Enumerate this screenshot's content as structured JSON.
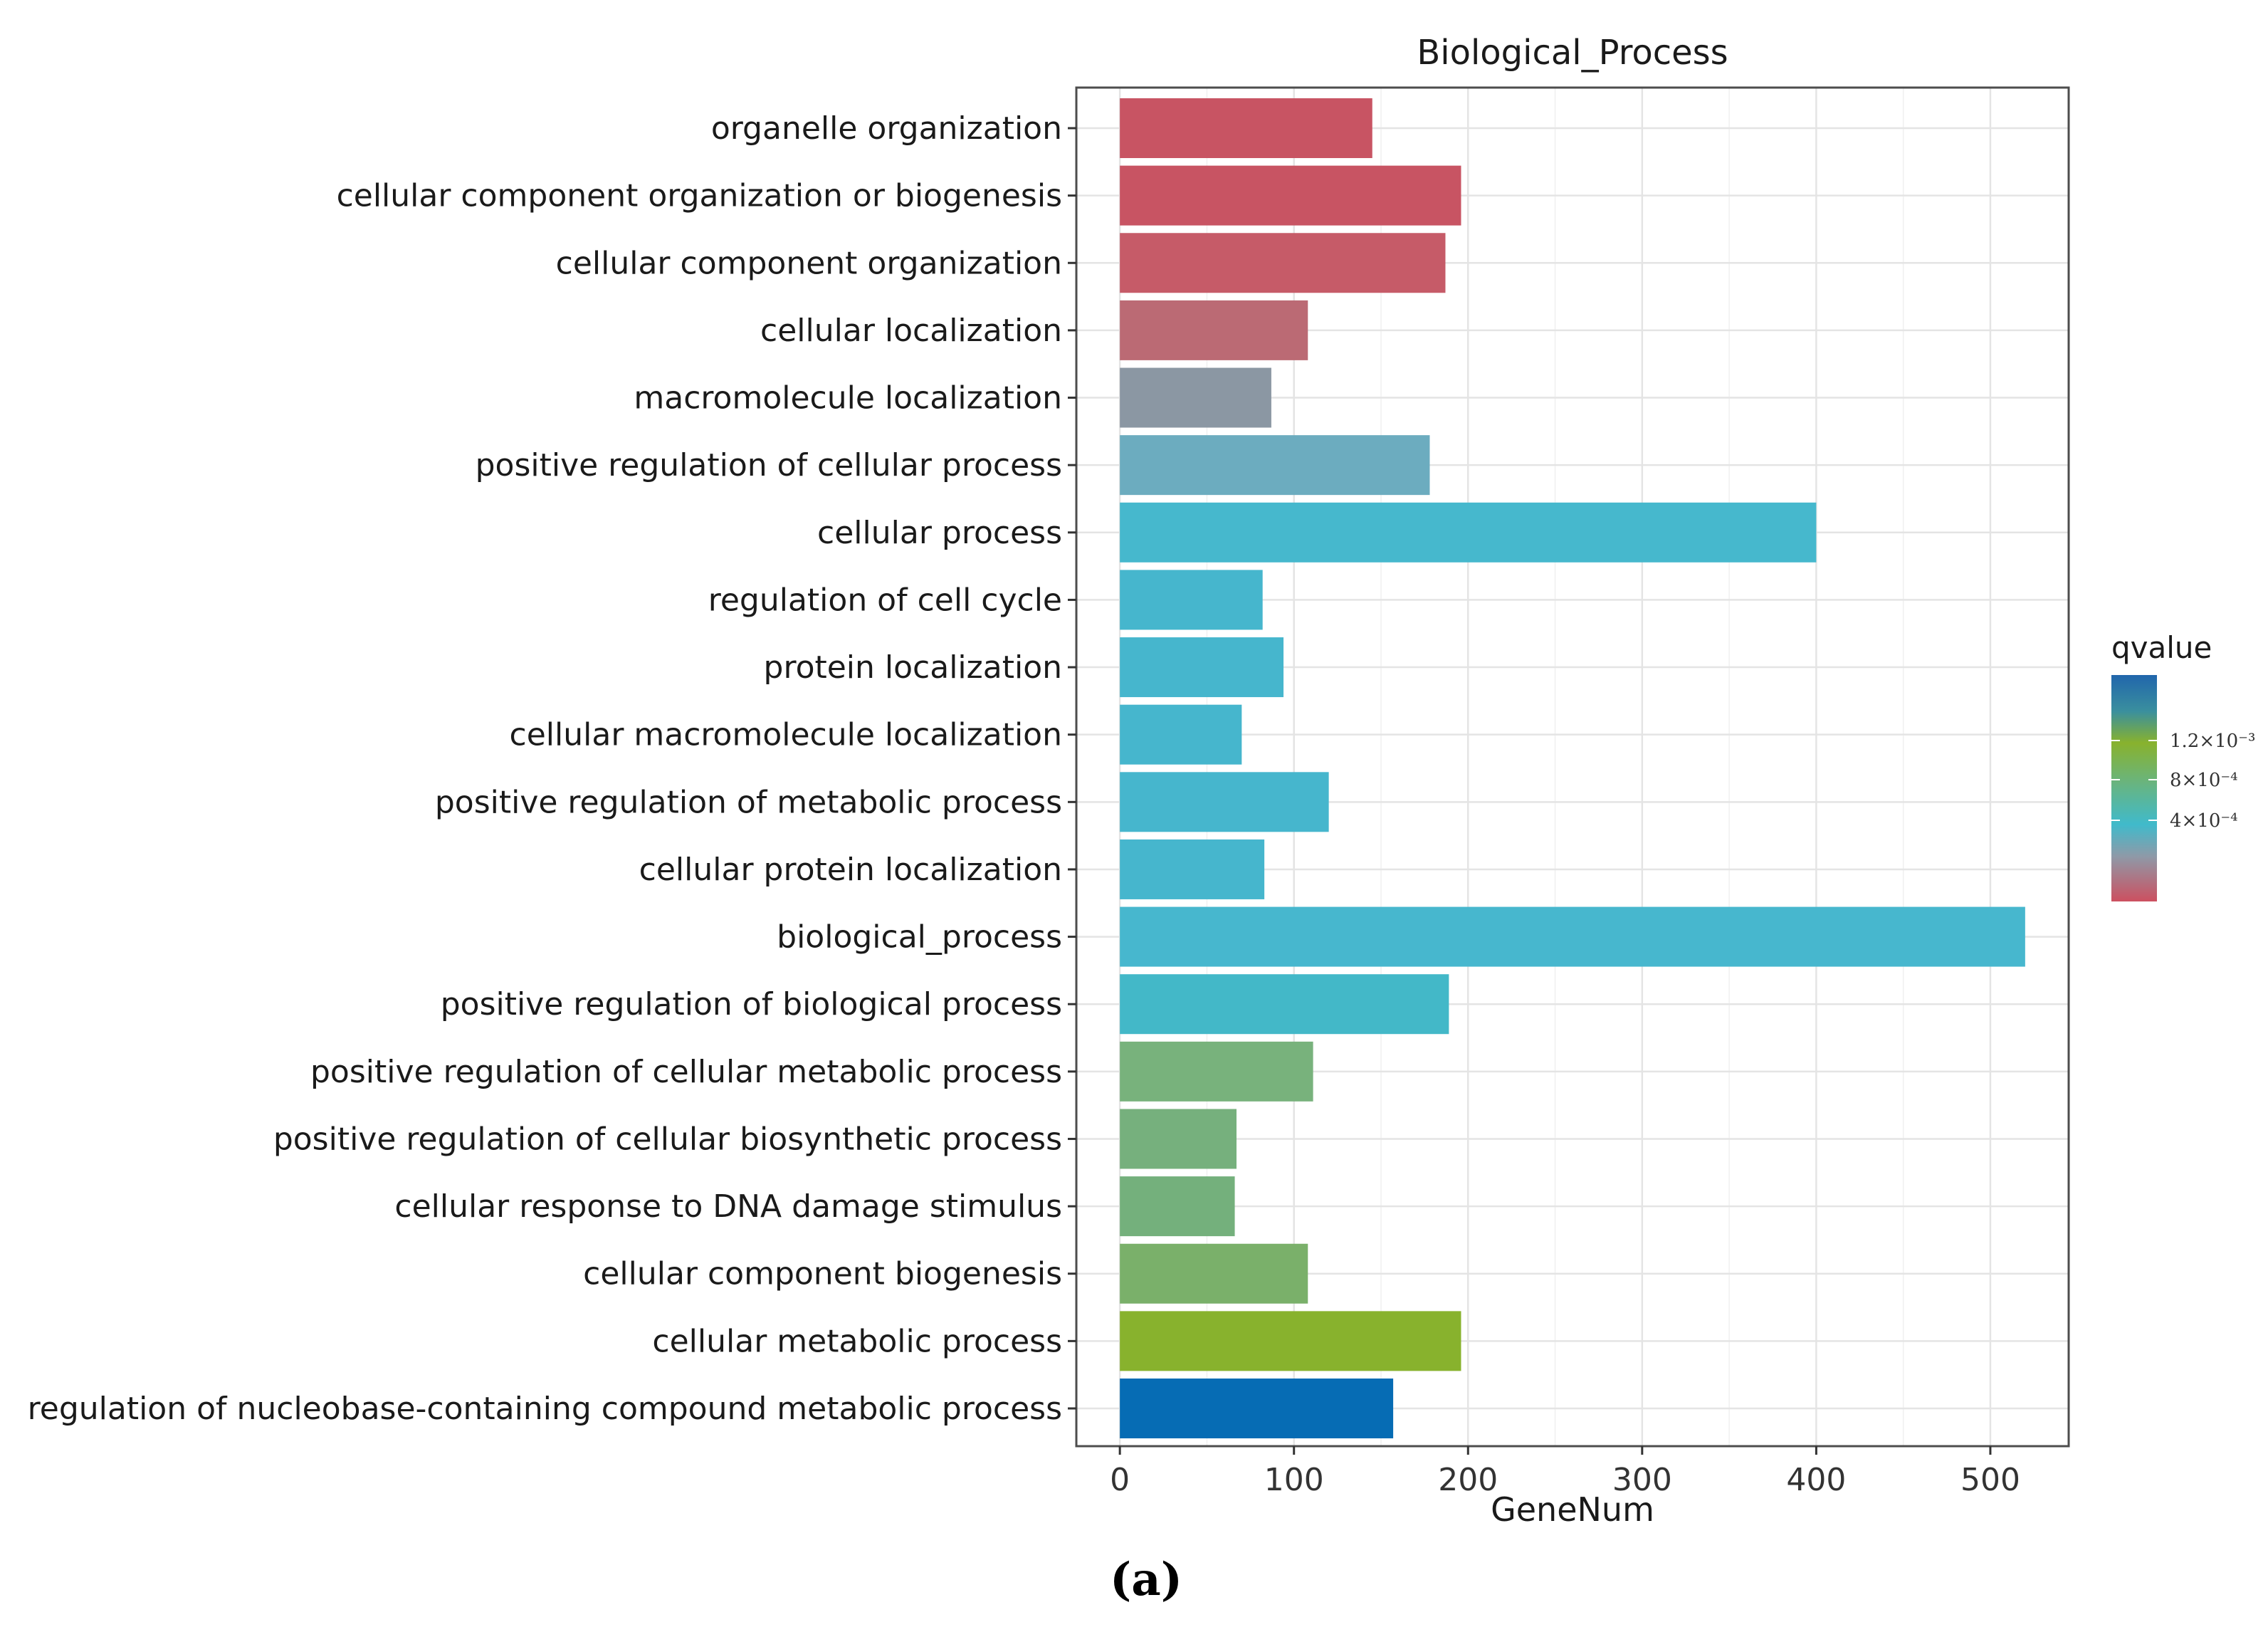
{
  "chart_data": {
    "type": "bar",
    "orientation": "horizontal",
    "title": "Biological_Process",
    "xlabel": "GeneNum",
    "ylabel": "",
    "xlim": [
      -25,
      545
    ],
    "xticks": [
      0,
      100,
      200,
      300,
      400,
      500
    ],
    "grid": true,
    "categories": [
      "organelle organization",
      "cellular component organization or biogenesis",
      "cellular component organization",
      "cellular localization",
      "macromolecule localization",
      "positive regulation of cellular process",
      "cellular process",
      "regulation of cell cycle",
      "protein localization",
      "cellular macromolecule localization",
      "positive regulation of metabolic process",
      "cellular protein localization",
      "biological_process",
      "positive regulation of biological process",
      "positive regulation of cellular metabolic process",
      "positive regulation of cellular biosynthetic process",
      "cellular response to DNA damage stimulus",
      "cellular component biogenesis",
      "cellular metabolic process",
      "regulation of nucleobase-containing compound metabolic process"
    ],
    "values": [
      145,
      196,
      187,
      108,
      87,
      178,
      400,
      82,
      94,
      70,
      120,
      83,
      520,
      189,
      111,
      67,
      66,
      108,
      196,
      157
    ],
    "bar_colors": [
      "#c85463",
      "#c85463",
      "#c65b68",
      "#bb6a74",
      "#8b97a3",
      "#6cacbf",
      "#46b8cd",
      "#46b6cd",
      "#46b6cd",
      "#46b6cd",
      "#46b6cd",
      "#46b6cd",
      "#47b7ce",
      "#43b8c8",
      "#78b27c",
      "#76b07d",
      "#74b07c",
      "#7ab06a",
      "#88b22d",
      "#066cb4"
    ],
    "legend": {
      "title": "qvalue",
      "placement": "right",
      "gradient_colors": [
        "#2166ac",
        "#3a8f9e",
        "#88b22d",
        "#6ab47c",
        "#40bacb",
        "#8e9aa8",
        "#cc5060"
      ],
      "tick_labels": [
        "1.2×10⁻³",
        "8×10⁻⁴",
        "4×10⁻⁴"
      ],
      "tick_values": [
        0.0012,
        0.0008,
        0.0004
      ]
    }
  },
  "panel_label": "(a)"
}
